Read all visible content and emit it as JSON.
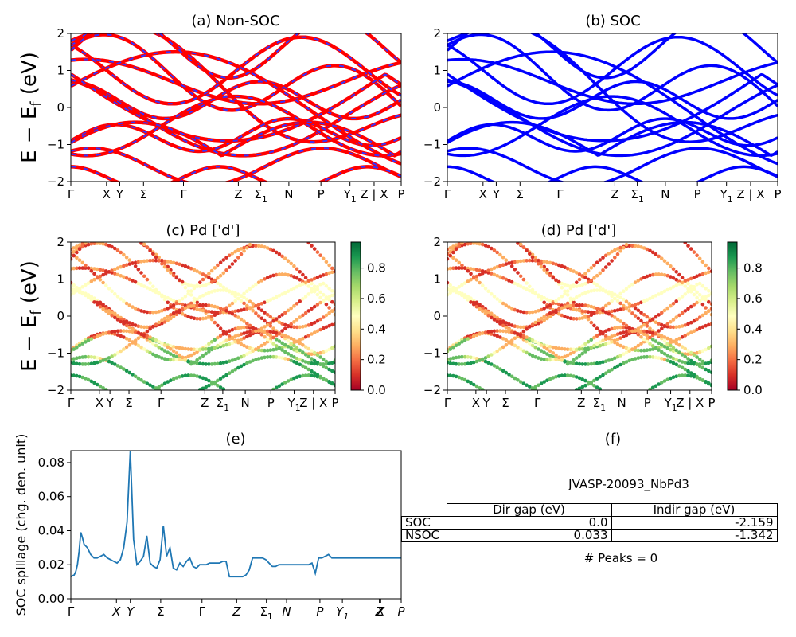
{
  "colors": {
    "nonsoc_base": "#ff0000",
    "nonsoc_dash": "#3333ff",
    "soc": "#0000ff",
    "spillage": "#1f77b4"
  },
  "chart_data": [
    {
      "id": "a",
      "type": "line",
      "title": "(a) Non-SOC",
      "ylabel": "E − E_f (eV)",
      "ylim": [
        -2,
        2
      ],
      "yticks": [
        "−2",
        "−1",
        "0",
        "1",
        "2"
      ],
      "kpath": [
        "Γ",
        "X",
        "Y",
        "Σ",
        "Γ",
        "Z",
        "Σ1",
        "N",
        "P",
        "Y1",
        "Z | X",
        "P"
      ]
    },
    {
      "id": "b",
      "type": "line",
      "title": "(b) SOC",
      "ylim": [
        -2,
        2
      ],
      "yticks": [
        "−2",
        "−1",
        "0",
        "1",
        "2"
      ],
      "kpath": [
        "Γ",
        "X",
        "Y",
        "Σ",
        "Γ",
        "Z",
        "Σ1",
        "N",
        "P",
        "Y1",
        "Z | X",
        "P"
      ]
    },
    {
      "id": "c",
      "type": "scatter",
      "title": "(c)  Pd ['d']",
      "ylabel": "E − E_f (eV)",
      "ylim": [
        -2,
        2
      ],
      "yticks": [
        "−2",
        "−1",
        "0",
        "1",
        "2"
      ],
      "kpath": [
        "Γ",
        "X",
        "Y",
        "Σ",
        "Γ",
        "Z",
        "Σ1",
        "N",
        "P",
        "Y1",
        "Z | X",
        "P"
      ],
      "colorbar": {
        "ticks": [
          "0.0",
          "0.2",
          "0.4",
          "0.6",
          "0.8"
        ],
        "colormap": "RdYlGn"
      }
    },
    {
      "id": "d",
      "type": "scatter",
      "title": "(d) Pd ['d']",
      "ylim": [
        -2,
        2
      ],
      "yticks": [
        "−2",
        "−1",
        "0",
        "1",
        "2"
      ],
      "kpath": [
        "Γ",
        "X",
        "Y",
        "Σ",
        "Γ",
        "Z",
        "Σ1",
        "N",
        "P",
        "Y1",
        "Z | X",
        "P"
      ],
      "colorbar": {
        "ticks": [
          "0.0",
          "0.2",
          "0.4",
          "0.6",
          "0.8"
        ],
        "colormap": "RdYlGn"
      }
    },
    {
      "id": "e",
      "type": "line",
      "title": "(e)",
      "ylabel": "SOC spillage (chg. den. unit)",
      "ylim": [
        0,
        0.087
      ],
      "yticks": [
        "0.00",
        "0.02",
        "0.04",
        "0.06",
        "0.08"
      ],
      "kpath": [
        "Γ",
        "X",
        "Y",
        "Σ",
        "Γ",
        "Z",
        "Σ1",
        "N",
        "P",
        "Y1",
        "Z",
        "X",
        "P"
      ],
      "x": [
        0,
        0.5,
        1,
        1.5,
        2,
        2.5,
        3,
        3.5,
        4,
        5,
        6,
        7,
        8,
        9,
        10,
        11,
        12,
        13,
        14,
        15,
        16,
        17,
        18,
        19,
        20,
        21,
        22,
        23,
        24,
        25,
        26,
        27,
        28,
        29,
        30,
        31,
        32,
        33,
        34,
        35,
        36,
        37,
        38,
        39,
        40,
        41,
        42,
        43,
        44,
        45,
        46,
        47,
        48,
        49,
        50,
        51,
        52,
        53,
        54,
        55,
        56,
        57,
        58,
        59,
        60,
        61,
        62,
        63,
        64,
        65,
        66,
        67,
        68,
        69,
        70,
        71,
        72,
        73,
        74,
        75,
        76,
        77,
        78,
        79,
        80,
        81,
        82,
        83,
        84,
        85,
        86,
        87,
        88,
        89,
        90,
        91,
        92,
        93,
        94,
        95,
        96,
        97,
        98,
        99,
        100
      ],
      "y": [
        0.013,
        0.0135,
        0.014,
        0.016,
        0.02,
        0.028,
        0.039,
        0.036,
        0.032,
        0.03,
        0.026,
        0.024,
        0.024,
        0.025,
        0.026,
        0.024,
        0.023,
        0.022,
        0.021,
        0.023,
        0.03,
        0.045,
        0.087,
        0.035,
        0.02,
        0.022,
        0.025,
        0.037,
        0.021,
        0.019,
        0.018,
        0.023,
        0.043,
        0.025,
        0.03,
        0.018,
        0.017,
        0.021,
        0.019,
        0.022,
        0.024,
        0.019,
        0.018,
        0.02,
        0.02,
        0.02,
        0.021,
        0.021,
        0.021,
        0.021,
        0.022,
        0.022,
        0.013,
        0.013,
        0.013,
        0.013,
        0.013,
        0.014,
        0.017,
        0.024,
        0.024,
        0.024,
        0.024,
        0.023,
        0.021,
        0.019,
        0.019,
        0.02,
        0.02,
        0.02,
        0.02,
        0.02,
        0.02,
        0.02,
        0.02,
        0.02,
        0.02,
        0.021,
        0.015,
        0.024,
        0.024,
        0.025,
        0.026,
        0.024,
        0.024,
        0.024,
        0.024,
        0.024,
        0.024,
        0.024,
        0.024,
        0.024,
        0.024,
        0.024,
        0.024,
        0.024,
        0.024,
        0.024,
        0.024,
        0.024,
        0.024,
        0.024,
        0.024,
        0.024,
        0.024
      ]
    }
  ],
  "panel_f": {
    "title": "(f)",
    "label": "JVASP-20093_NbPd3",
    "table": {
      "headers": [
        "Dir gap (eV)",
        "Indir gap (eV)"
      ],
      "rows": [
        {
          "name": "SOC",
          "dir": "0.0",
          "indir": "-2.159"
        },
        {
          "name": "NSOC",
          "dir": "0.033",
          "indir": "-1.342"
        }
      ]
    },
    "peaks": "# Peaks = 0"
  }
}
